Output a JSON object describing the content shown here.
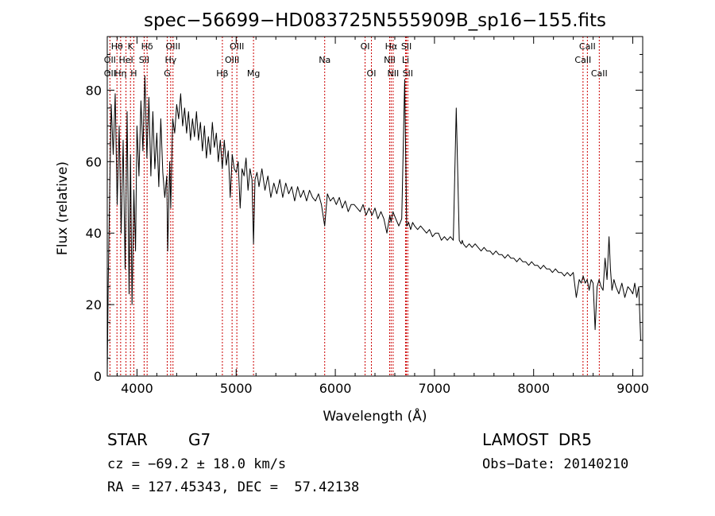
{
  "chart_data": {
    "type": "line",
    "title": "spec−56699−HD083725N555909B_sp16−155.fits",
    "xlabel": "Wavelength (Å)",
    "ylabel": "Flux (relative)",
    "xlim": [
      3700,
      9100
    ],
    "ylim": [
      0,
      95
    ],
    "xticks": [
      4000,
      5000,
      6000,
      7000,
      8000,
      9000
    ],
    "yticks": [
      0,
      20,
      40,
      60,
      80
    ],
    "grid": false,
    "line_color": "#000000",
    "marker_color": "#cc0000",
    "lines": [
      {
        "label": "Hθ",
        "wave": 3798,
        "row": 0
      },
      {
        "label": "K",
        "wave": 3934,
        "row": 0
      },
      {
        "label": "Hδ",
        "wave": 4102,
        "row": 0
      },
      {
        "label": "OIII",
        "wave": 4363,
        "row": 0
      },
      {
        "label": "OIII",
        "wave": 5007,
        "row": 0
      },
      {
        "label": "OI",
        "wave": 6300,
        "row": 0
      },
      {
        "label": "Hα",
        "wave": 6563,
        "row": 0
      },
      {
        "label": "SII",
        "wave": 6717,
        "row": 0
      },
      {
        "label": "CaII",
        "wave": 8542,
        "row": 0
      },
      {
        "label": "OII",
        "wave": 3727,
        "row": 1
      },
      {
        "label": "HeI",
        "wave": 3889,
        "row": 1
      },
      {
        "label": "SII",
        "wave": 4072,
        "row": 1
      },
      {
        "label": "Hγ",
        "wave": 4340,
        "row": 1
      },
      {
        "label": "OIII",
        "wave": 4959,
        "row": 1
      },
      {
        "label": "Na",
        "wave": 5893,
        "row": 1
      },
      {
        "label": "NII",
        "wave": 6548,
        "row": 1
      },
      {
        "label": "Li",
        "wave": 6708,
        "row": 1
      },
      {
        "label": "CaII",
        "wave": 8498,
        "row": 1
      },
      {
        "label": "OII",
        "wave": 3727,
        "row": 2
      },
      {
        "label": "Hη",
        "wave": 3835,
        "row": 2
      },
      {
        "label": "H",
        "wave": 3968,
        "row": 2
      },
      {
        "label": "G",
        "wave": 4305,
        "row": 2
      },
      {
        "label": "Hβ",
        "wave": 4861,
        "row": 2
      },
      {
        "label": "Mg",
        "wave": 5175,
        "row": 2
      },
      {
        "label": "OI",
        "wave": 6364,
        "row": 2
      },
      {
        "label": "NII",
        "wave": 6583,
        "row": 2
      },
      {
        "label": "SII",
        "wave": 6731,
        "row": 2
      },
      {
        "label": "CaII",
        "wave": 8662,
        "row": 2
      }
    ],
    "series": [
      {
        "x": [
          3700,
          3710,
          3725,
          3740,
          3760,
          3780,
          3800,
          3820,
          3840,
          3860,
          3880,
          3900,
          3920,
          3935,
          3950,
          3968,
          3985,
          4000,
          4020,
          4040,
          4060,
          4080,
          4100,
          4120,
          4140,
          4160,
          4180,
          4200,
          4220,
          4240,
          4260,
          4280,
          4300,
          4310,
          4330,
          4340,
          4360,
          4380,
          4400,
          4420,
          4440,
          4460,
          4480,
          4500,
          4520,
          4540,
          4560,
          4580,
          4600,
          4620,
          4640,
          4660,
          4680,
          4700,
          4720,
          4740,
          4760,
          4780,
          4800,
          4820,
          4840,
          4860,
          4880,
          4900,
          4920,
          4940,
          4960,
          4980,
          5000,
          5020,
          5040,
          5060,
          5080,
          5100,
          5120,
          5140,
          5160,
          5175,
          5190,
          5210,
          5230,
          5260,
          5290,
          5320,
          5350,
          5380,
          5410,
          5440,
          5470,
          5500,
          5530,
          5560,
          5590,
          5620,
          5650,
          5680,
          5710,
          5740,
          5770,
          5800,
          5830,
          5860,
          5893,
          5920,
          5950,
          5980,
          6010,
          6040,
          6070,
          6100,
          6130,
          6160,
          6190,
          6220,
          6250,
          6280,
          6310,
          6340,
          6370,
          6400,
          6430,
          6460,
          6490,
          6520,
          6550,
          6563,
          6580,
          6610,
          6640,
          6670,
          6700,
          6720,
          6740,
          6760,
          6780,
          6800,
          6830,
          6860,
          6890,
          6920,
          6950,
          6980,
          7010,
          7040,
          7070,
          7100,
          7130,
          7160,
          7190,
          7220,
          7250,
          7270,
          7280,
          7290,
          7320,
          7350,
          7380,
          7410,
          7440,
          7470,
          7500,
          7530,
          7560,
          7590,
          7620,
          7650,
          7680,
          7710,
          7740,
          7770,
          7800,
          7830,
          7860,
          7890,
          7920,
          7950,
          7980,
          8010,
          8040,
          8070,
          8100,
          8130,
          8160,
          8190,
          8220,
          8250,
          8280,
          8310,
          8340,
          8370,
          8400,
          8430,
          8460,
          8480,
          8500,
          8520,
          8540,
          8560,
          8580,
          8600,
          8620,
          8640,
          8660,
          8680,
          8700,
          8720,
          8740,
          8760,
          8775,
          8790,
          8810,
          8830,
          8860,
          8890,
          8920,
          8950,
          8980,
          9000,
          9020,
          9040,
          9060,
          9080
        ],
        "y": [
          0,
          26,
          52,
          76,
          62,
          79,
          48,
          70,
          40,
          66,
          30,
          74,
          23,
          62,
          20,
          52,
          35,
          70,
          56,
          77,
          63,
          84,
          61,
          78,
          56,
          74,
          58,
          68,
          53,
          72,
          57,
          50,
          56,
          35,
          60,
          47,
          72,
          68,
          76,
          72,
          79,
          70,
          75,
          68,
          74,
          66,
          72,
          67,
          74,
          66,
          71,
          63,
          70,
          61,
          67,
          62,
          71,
          64,
          68,
          60,
          66,
          58,
          66,
          59,
          63,
          50,
          62,
          58,
          57,
          60,
          47,
          58,
          56,
          61,
          52,
          58,
          55,
          37,
          55,
          57,
          53,
          58,
          52,
          56,
          50,
          54,
          51,
          55,
          50,
          54,
          51,
          53,
          49,
          53,
          50,
          52,
          49,
          52,
          50,
          49,
          51,
          48,
          42,
          51,
          49,
          50,
          48,
          50,
          47,
          49,
          46,
          48,
          48,
          47,
          46,
          48,
          45,
          47,
          45,
          47,
          44,
          46,
          44,
          40,
          45,
          43,
          46,
          44,
          42,
          44,
          83,
          42,
          43,
          41,
          43,
          42,
          41,
          42,
          41,
          40,
          41,
          39,
          40,
          40,
          38,
          39,
          38,
          39,
          38,
          75,
          38,
          37,
          38,
          37,
          36,
          37,
          36,
          37,
          36,
          35,
          36,
          35,
          35,
          34,
          35,
          34,
          34,
          33,
          34,
          33,
          33,
          32,
          33,
          32,
          32,
          31,
          32,
          31,
          31,
          30,
          31,
          30,
          30,
          29,
          30,
          29,
          29,
          28,
          29,
          28,
          29,
          22,
          27,
          26,
          28,
          26,
          27,
          24,
          27,
          26,
          13,
          25,
          27,
          25,
          24,
          33,
          27,
          39,
          30,
          24,
          27,
          25,
          23,
          26,
          22,
          25,
          24,
          23,
          26,
          22,
          25,
          10
        ]
      }
    ]
  },
  "info": {
    "object_class": "STAR",
    "subclass": "G7",
    "survey": "LAMOST  DR5",
    "cz": "cz = −69.2 ± 18.0 km/s",
    "obs_date": "Obs−Date: 20140210",
    "coords": "RA = 127.45343, DEC =  57.42138"
  }
}
